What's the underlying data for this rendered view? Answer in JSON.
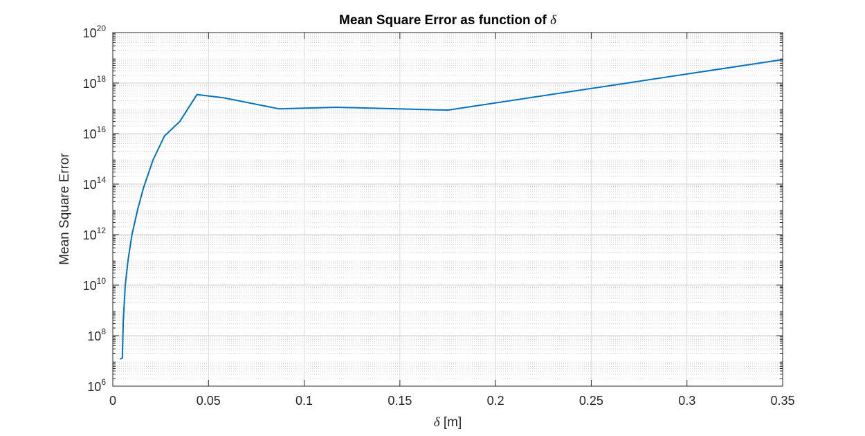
{
  "chart_data": {
    "type": "line",
    "title": {
      "text": "Mean Square Error as function of ",
      "symbol": "δ"
    },
    "xlabel": {
      "symbol": "δ",
      "text": " [m]"
    },
    "ylabel": "Mean Square Error",
    "xlim": [
      0,
      0.35
    ],
    "ylim": [
      1000000.0,
      1e+20
    ],
    "yscale": "log",
    "grid": true,
    "minor_grid": true,
    "xticks": [
      {
        "value": 0,
        "label": "0"
      },
      {
        "value": 0.05,
        "label": "0.05"
      },
      {
        "value": 0.1,
        "label": "0.1"
      },
      {
        "value": 0.15,
        "label": "0.15"
      },
      {
        "value": 0.2,
        "label": "0.2"
      },
      {
        "value": 0.25,
        "label": "0.25"
      },
      {
        "value": 0.3,
        "label": "0.3"
      },
      {
        "value": 0.35,
        "label": "0.35"
      }
    ],
    "yticks": [
      {
        "value": 1000000.0,
        "base": "10",
        "exp": "6"
      },
      {
        "value": 100000000.0,
        "base": "10",
        "exp": "8"
      },
      {
        "value": 10000000000.0,
        "base": "10",
        "exp": "10"
      },
      {
        "value": 1000000000000.0,
        "base": "10",
        "exp": "12"
      },
      {
        "value": 100000000000000.0,
        "base": "10",
        "exp": "14"
      },
      {
        "value": 1e+16,
        "base": "10",
        "exp": "16"
      },
      {
        "value": 1e+18,
        "base": "10",
        "exp": "18"
      },
      {
        "value": 1e+20,
        "base": "10",
        "exp": "20"
      }
    ],
    "series": [
      {
        "color": "#0072BD",
        "x": [
          0.004,
          0.005,
          0.0055,
          0.0065,
          0.008,
          0.01,
          0.013,
          0.016,
          0.021,
          0.027,
          0.035,
          0.044,
          0.058,
          0.087,
          0.117,
          0.175,
          0.35
        ],
        "y": [
          12000000.0,
          13000000.0,
          400000000.0,
          10000000000.0,
          100000000000.0,
          1000000000000.0,
          10000000000000.0,
          70000000000000.0,
          900000000000000.0,
          8000000000000000.0,
          3e+16,
          3.5e+17,
          2.6e+17,
          9.5e+16,
          1.1e+17,
          8.5e+16,
          8.5e+18
        ]
      }
    ]
  }
}
